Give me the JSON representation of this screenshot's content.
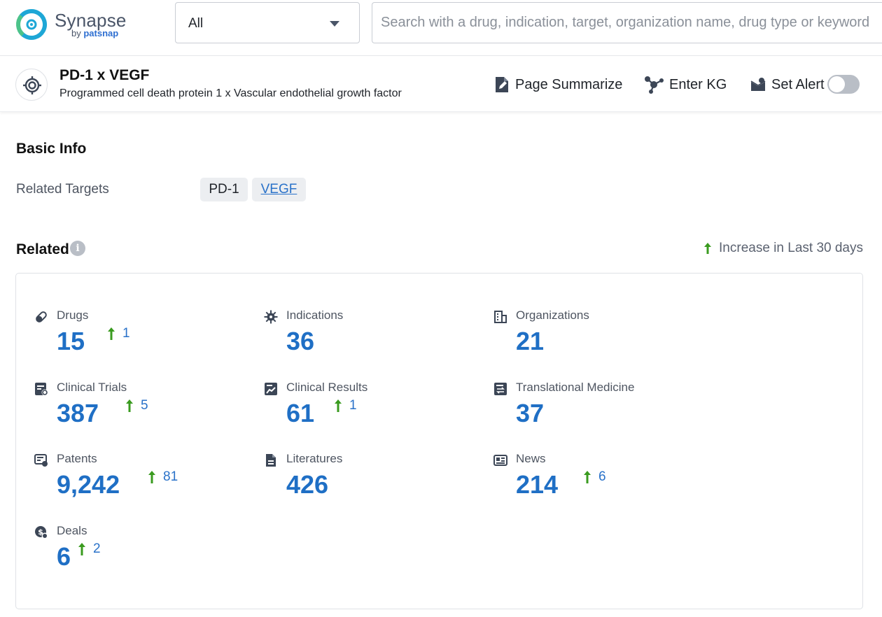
{
  "logo": {
    "name": "Synapse",
    "by": "by",
    "brand": "patsnap"
  },
  "search": {
    "scope_value": "All",
    "placeholder": "Search with a drug, indication, target, organization name, drug type or keyword"
  },
  "target": {
    "title": "PD-1 x VEGF",
    "subtitle": "Programmed cell death protein 1 x Vascular endothelial growth factor"
  },
  "actions": {
    "summarize": "Page Summarize",
    "kg": "Enter KG",
    "alert": "Set Alert",
    "alert_enabled": false
  },
  "basic_info": {
    "title": "Basic Info",
    "related_targets_label": "Related Targets",
    "targets": [
      "PD-1",
      "VEGF"
    ]
  },
  "related": {
    "title": "Related",
    "legend": "Increase in Last 30 days",
    "stats": [
      {
        "label": "Drugs",
        "value": "15",
        "increase": "1",
        "icon": "pill-icon"
      },
      {
        "label": "Indications",
        "value": "36",
        "increase": "",
        "icon": "virus-icon"
      },
      {
        "label": "Organizations",
        "value": "21",
        "increase": "",
        "icon": "building-icon"
      },
      {
        "label": "Clinical Trials",
        "value": "387",
        "increase": "5",
        "icon": "clinical-trial-icon"
      },
      {
        "label": "Clinical Results",
        "value": "61",
        "increase": "1",
        "icon": "chart-document-icon"
      },
      {
        "label": "Translational Medicine",
        "value": "37",
        "increase": "",
        "icon": "exchange-document-icon"
      },
      {
        "label": "Patents",
        "value": "9,242",
        "increase": "81",
        "icon": "certificate-icon"
      },
      {
        "label": "Literatures",
        "value": "426",
        "increase": "",
        "icon": "document-icon"
      },
      {
        "label": "News",
        "value": "214",
        "increase": "6",
        "icon": "newspaper-icon"
      },
      {
        "label": "Deals",
        "value": "6",
        "increase": "2",
        "icon": "deal-icon"
      }
    ]
  },
  "colors": {
    "accent": "#1f6fc5",
    "increase_arrow": "#3a9b1f",
    "link": "#2a72c9"
  }
}
